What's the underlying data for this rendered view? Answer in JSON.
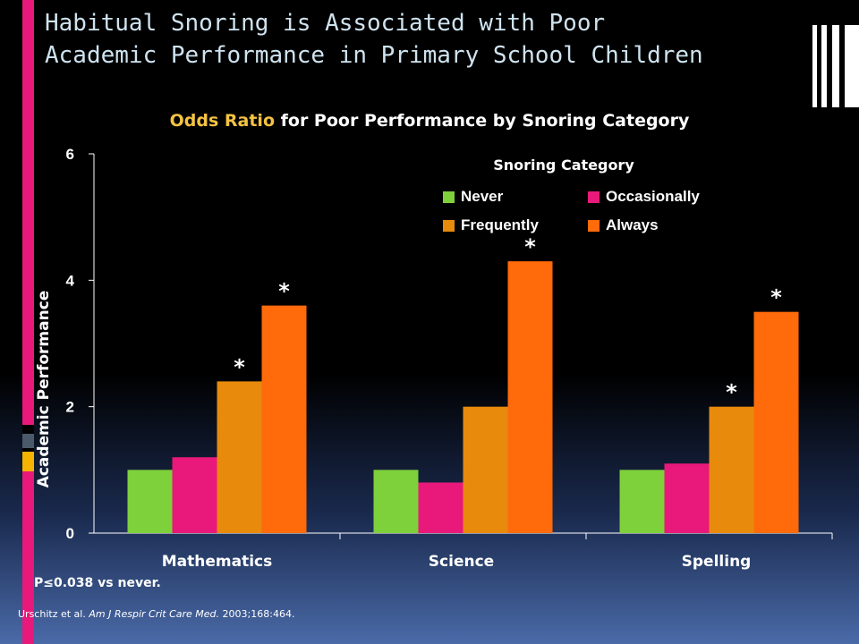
{
  "slide": {
    "title_line1": "Habitual Snoring is Associated with Poor",
    "title_line2": "Academic Performance in Primary School Children"
  },
  "chart_data": {
    "type": "bar",
    "title_accent": "Odds Ratio",
    "title_rest": " for Poor Performance by Snoring Category",
    "ylabel": "Academic Performance",
    "xlabel": "",
    "ylim": [
      0,
      6
    ],
    "y_ticks": [
      "0",
      "2",
      "4",
      "6"
    ],
    "categories": [
      "Mathematics",
      "Science",
      "Spelling"
    ],
    "legend_title": "Snoring Category",
    "legend_position": "top-right",
    "grid": false,
    "series": [
      {
        "name": "Never",
        "color": "#7ed13b",
        "values": [
          1.0,
          1.0,
          1.0
        ]
      },
      {
        "name": "Occasionally",
        "color": "#e8197a",
        "values": [
          1.2,
          0.8,
          1.1
        ]
      },
      {
        "name": "Frequently",
        "color": "#e88a0c",
        "values": [
          2.4,
          2.0,
          2.0
        ]
      },
      {
        "name": "Always",
        "color": "#ff6a0a",
        "values": [
          3.6,
          4.3,
          3.5
        ]
      }
    ],
    "significance_marker": "*",
    "significant": [
      [
        false,
        false,
        true,
        true
      ],
      [
        false,
        false,
        false,
        true
      ],
      [
        false,
        false,
        true,
        true
      ]
    ]
  },
  "footnotes": {
    "pvalue": "P≤0.038 vs never.",
    "citation_prefix": "Urschitz et al. ",
    "citation_journal": "Am J Respir Crit Care Med.",
    "citation_suffix": " 2003;168:464."
  },
  "colors": {
    "axis": "#ffffff",
    "text": "#ffffff",
    "accent": "#f5c342",
    "title": "#cfe3ef"
  }
}
